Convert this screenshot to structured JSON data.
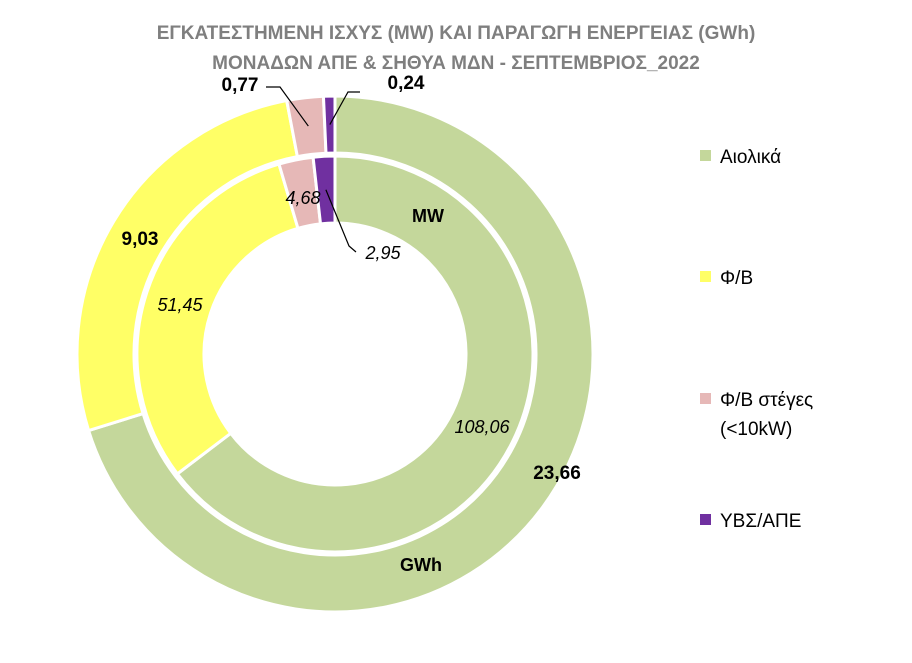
{
  "chart_data": {
    "type": "donut",
    "title_lines": [
      "ΕΓΚΑΤΕΣΤΗΜΕΝΗ ΙΣΧΥΣ (MW) ΚΑΙ ΠΑΡΑΓΩΓΗ ΕΝΕΡΓΕΙΑΣ (GWh)",
      "ΜΟΝΑΔΩΝ ΑΠΕ & ΣΗΘΥΑ  ΜΔΝ - ΣΕΠΤΕΜΒΡΙΟΣ_2022"
    ],
    "categories": [
      "Αιολικά",
      "Φ/Β",
      "Φ/Β στέγες (<10kW)",
      "ΥΒΣ/ΑΠΕ"
    ],
    "legend": [
      {
        "lines": [
          "Αιολικά"
        ]
      },
      {
        "lines": [
          "Φ/Β"
        ]
      },
      {
        "lines": [
          "Φ/Β στέγες",
          "(<10kW)"
        ]
      },
      {
        "lines": [
          "ΥΒΣ/ΑΠΕ"
        ]
      }
    ],
    "colors": [
      "#c4d79b",
      "#ffff66",
      "#e6b8b7",
      "#7030a0"
    ],
    "series": [
      {
        "name": "MW",
        "values": [
          108.06,
          51.45,
          4.68,
          2.95
        ],
        "labels": [
          "108,06",
          "51,45",
          "4,68",
          "2,95"
        ]
      },
      {
        "name": "GWh",
        "values": [
          23.66,
          9.03,
          0.77,
          0.24
        ],
        "labels": [
          "23,66",
          "9,03",
          "0,77",
          "0,24"
        ]
      }
    ],
    "legend_position": "right"
  }
}
